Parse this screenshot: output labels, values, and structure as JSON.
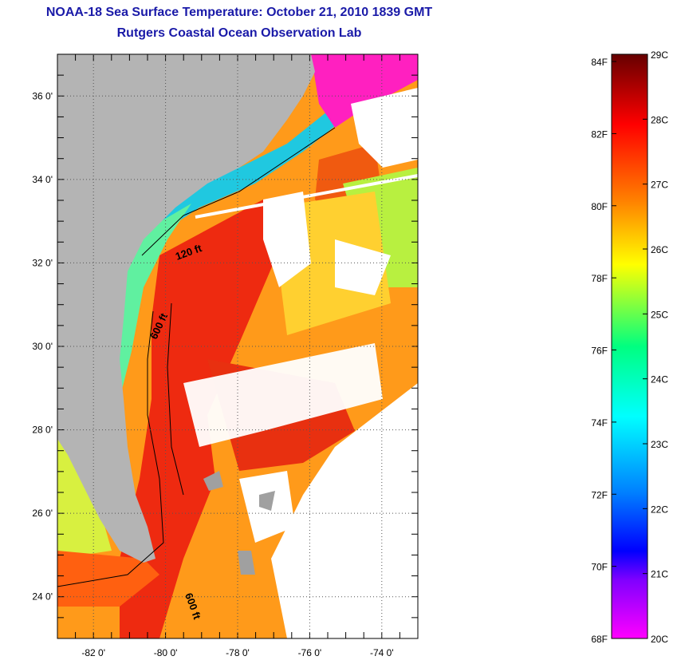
{
  "header": {
    "title_line1": "NOAA-18 Sea Surface Temperature:  October 21, 2010 1839 GMT",
    "title_line2": "Rutgers Coastal Ocean Observation Lab"
  },
  "map": {
    "lat_labels": [
      "36 0'",
      "34 0'",
      "32 0'",
      "30 0'",
      "28 0'",
      "26 0'",
      "24 0'"
    ],
    "lon_labels": [
      "-82 0'",
      "-80 0'",
      "-78 0'",
      "-76 0'",
      "-74 0'"
    ],
    "lat_values": [
      36,
      34,
      32,
      30,
      28,
      26,
      24
    ],
    "lon_values": [
      -82,
      -80,
      -78,
      -76,
      -74
    ],
    "lat_range": [
      23,
      37
    ],
    "lon_range": [
      -83,
      -73
    ],
    "contour_labels": [
      "120 ft",
      "600 ft",
      "600 ft"
    ],
    "colors": {
      "land": "#b4b4b4",
      "no_data": "#ffffff",
      "title": "#1a1aa8"
    }
  },
  "colorbar": {
    "fahrenheit_labels": [
      "84F",
      "82F",
      "80F",
      "78F",
      "76F",
      "74F",
      "72F",
      "70F",
      "68F"
    ],
    "celsius_labels": [
      "29C",
      "28C",
      "27C",
      "26C",
      "25C",
      "24C",
      "23C",
      "22C",
      "21C",
      "20C"
    ],
    "gradient_colors": [
      "#660000",
      "#ff0000",
      "#ff8000",
      "#ffff00",
      "#00ff80",
      "#00ffff",
      "#0080ff",
      "#0000ff",
      "#8000ff",
      "#ff00ff"
    ]
  }
}
